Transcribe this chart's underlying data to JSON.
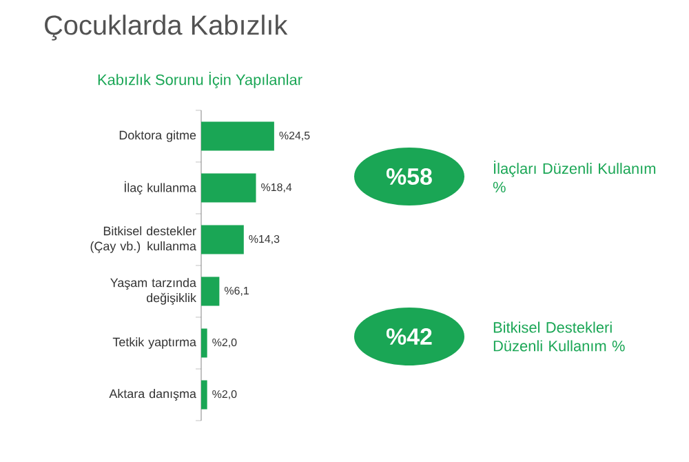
{
  "chart_data": {
    "type": "bar",
    "orientation": "horizontal",
    "title": "Çocuklarda Kabızlık",
    "subtitle": "Kabızlık Sorunu İçin Yapılanlar",
    "categories": [
      "Doktora gitme",
      "İlaç kullanma",
      "Bitkisel  destekler (Çay vb.) kullanma",
      "Yaşam tarzında değişiklik",
      "Tetkik yaptırma",
      "Aktara danışma"
    ],
    "values": [
      24.5,
      18.4,
      14.3,
      6.1,
      2.0,
      2.0
    ],
    "value_labels": [
      "%24,5",
      "%18,4",
      "%14,3",
      "%6,1",
      "%2,0",
      "%2,0"
    ],
    "color": "#1aa655",
    "annotations": [
      "%58",
      "İlaçları Düzenli Kullanım %",
      "%42",
      "Bitkisel Destekleri Düzenli Kullanım %"
    ]
  }
}
